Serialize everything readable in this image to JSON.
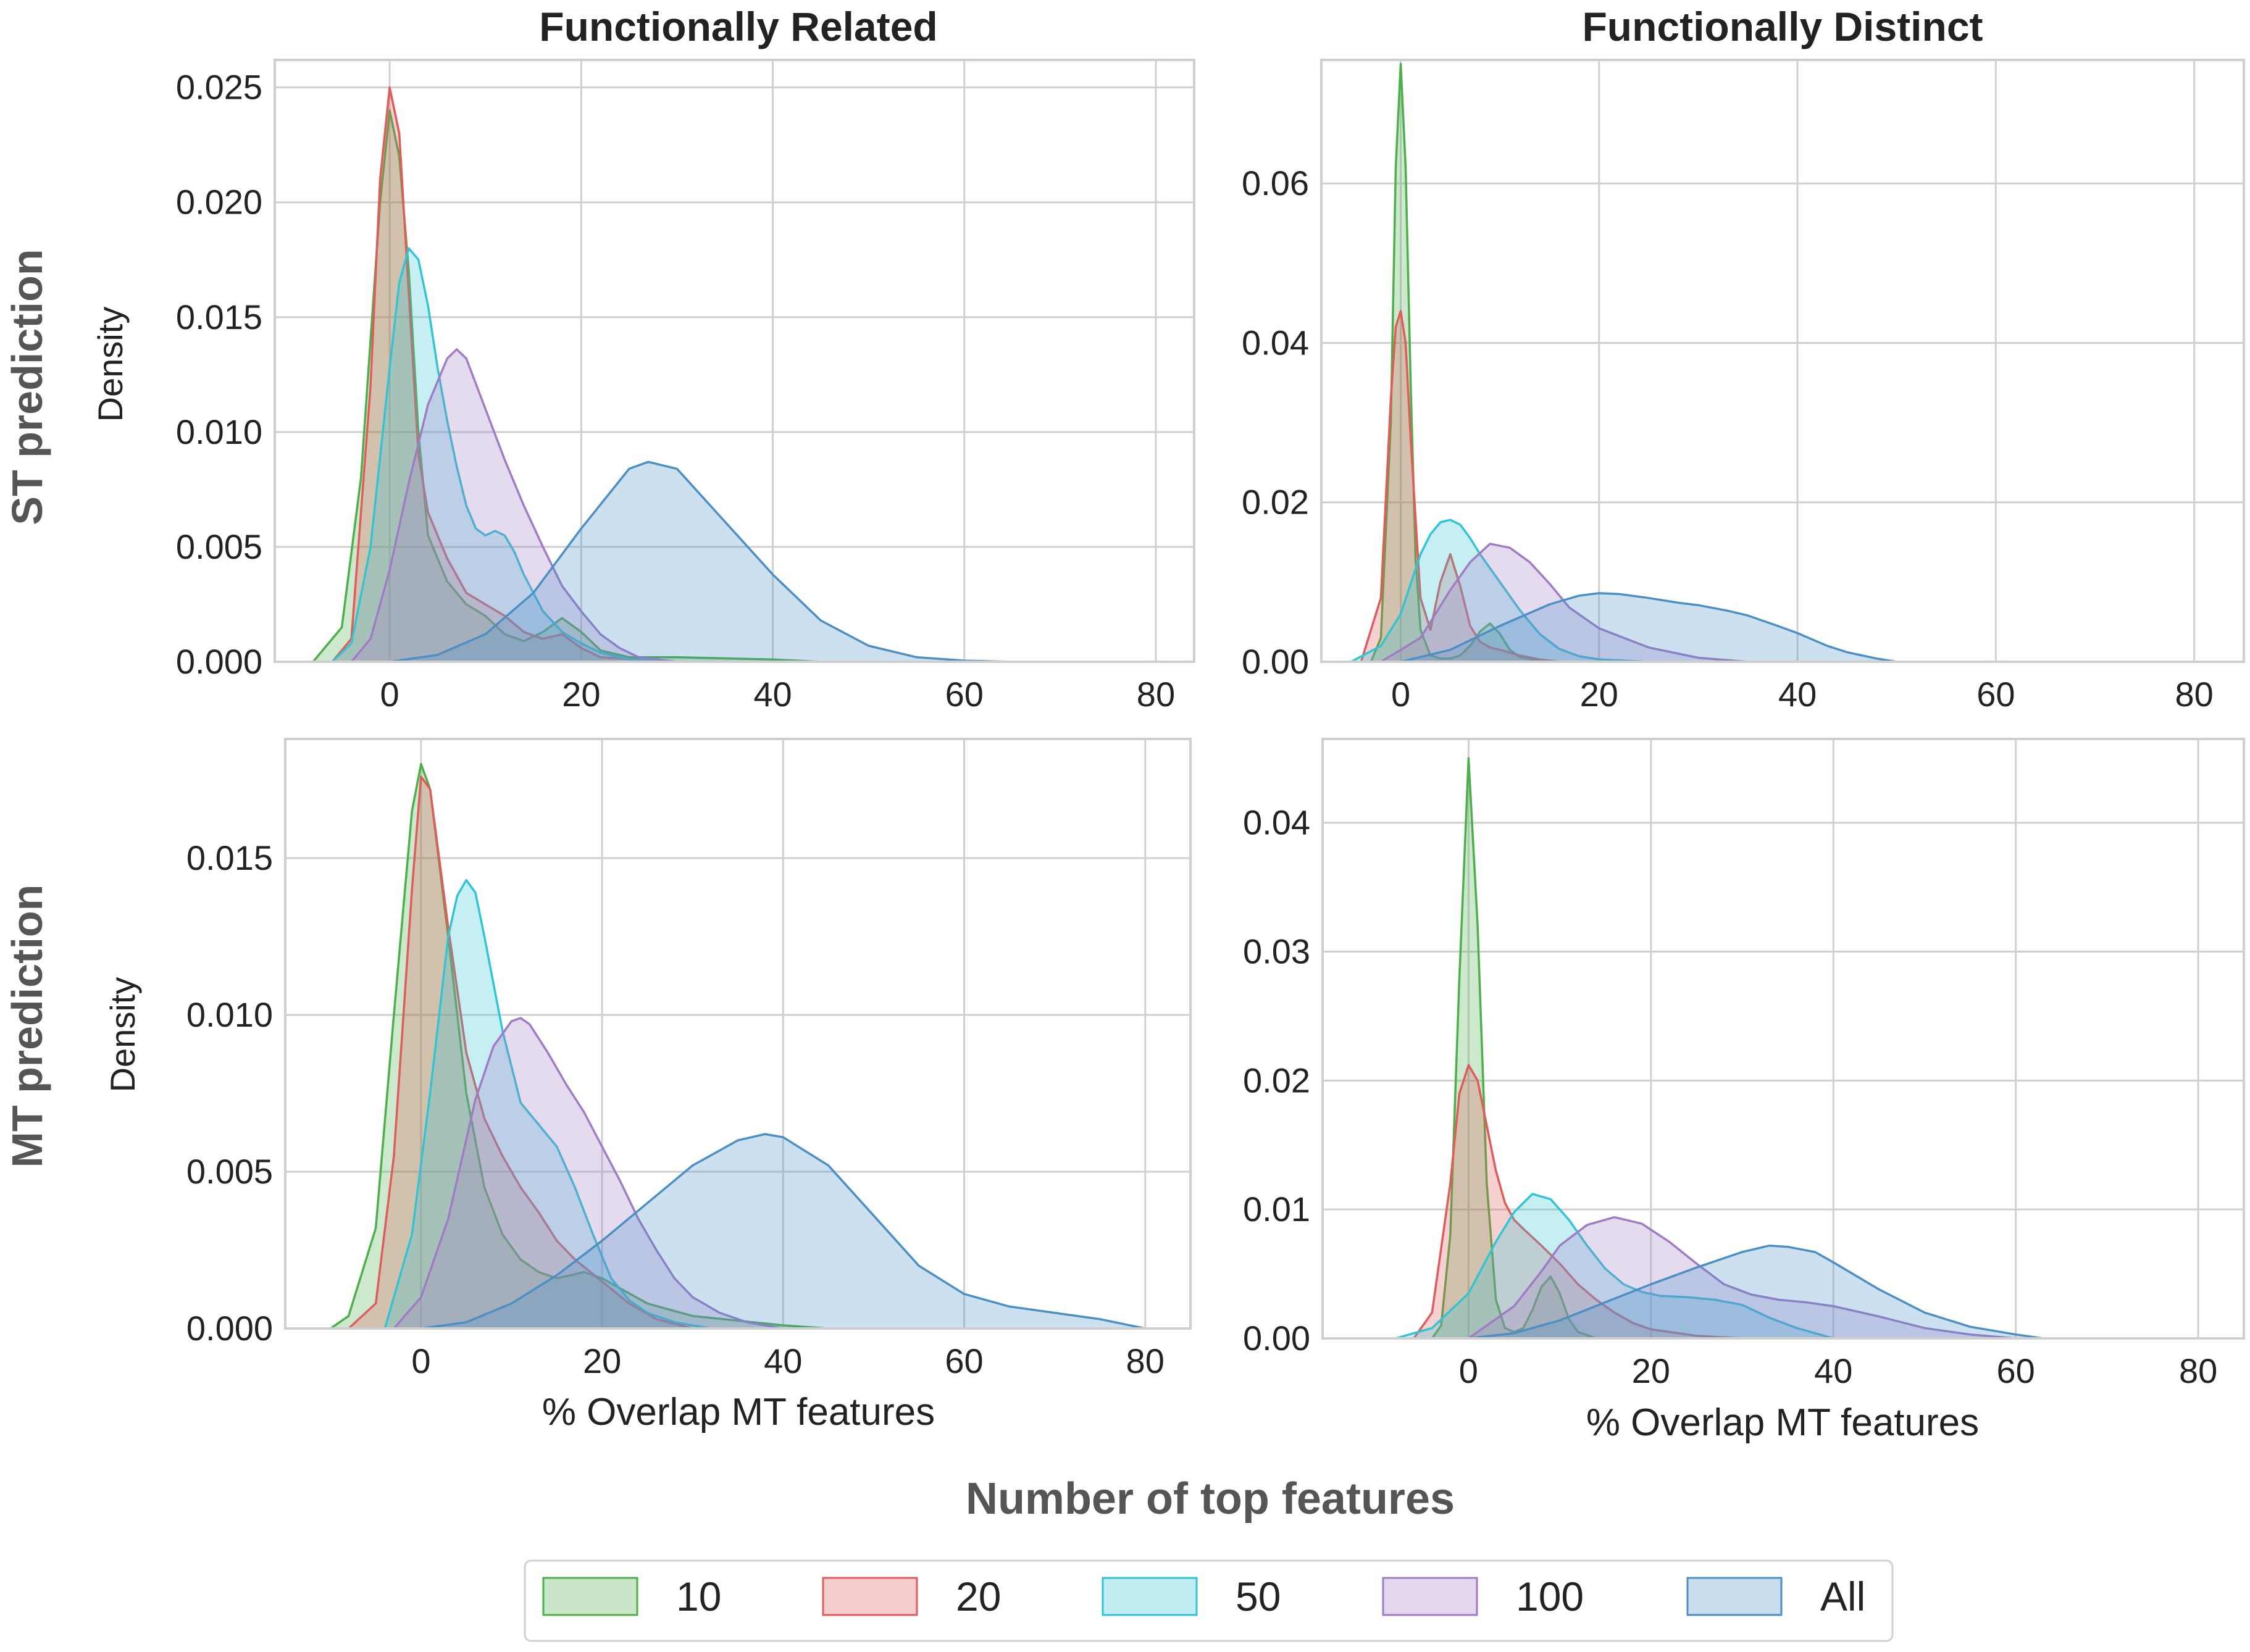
{
  "colors": {
    "10": "#4daf4a",
    "20": "#e05b5b",
    "50": "#33c4d4",
    "100": "#a07cc5",
    "All": "#4b8fc4"
  },
  "column_titles": [
    "Functionally Related",
    "Functionally Distinct"
  ],
  "row_titles": [
    "ST prediction",
    "MT prediction"
  ],
  "legend": {
    "title": "Number of top features",
    "items": [
      {
        "key": "10",
        "label": "10"
      },
      {
        "key": "20",
        "label": "20"
      },
      {
        "key": "50",
        "label": "50"
      },
      {
        "key": "100",
        "label": "100"
      },
      {
        "key": "All",
        "label": "All"
      }
    ]
  },
  "chart_data": [
    {
      "type": "area",
      "panel": "ST prediction / Functionally Related",
      "title": "Functionally Related",
      "xlabel": "",
      "ylabel": "Density",
      "xlim": [
        -12,
        84
      ],
      "ylim": [
        0,
        0.0262
      ],
      "xticks": [
        0,
        20,
        40,
        60,
        80
      ],
      "xtick_labels": [
        "0",
        "20",
        "40",
        "60",
        "80"
      ],
      "yticks": [
        0,
        0.005,
        0.01,
        0.015,
        0.02,
        0.025
      ],
      "ytick_labels": [
        "0.000",
        "0.005",
        "0.010",
        "0.015",
        "0.020",
        "0.025"
      ],
      "series": [
        {
          "name": "10",
          "x": [
            -8,
            -5,
            -3,
            -1,
            0,
            1,
            2,
            3,
            4,
            6,
            8,
            10,
            12,
            14,
            16,
            18,
            20,
            22,
            25,
            30,
            40,
            45
          ],
          "y": [
            0,
            0.0015,
            0.008,
            0.02,
            0.024,
            0.022,
            0.017,
            0.01,
            0.0055,
            0.0035,
            0.0025,
            0.002,
            0.0012,
            0.0009,
            0.0013,
            0.0019,
            0.0013,
            0.0005,
            0.0002,
            0.0002,
            0.0001,
            0
          ]
        },
        {
          "name": "20",
          "x": [
            -6,
            -4,
            -2,
            -1,
            0,
            1,
            2,
            3,
            4,
            5,
            6,
            8,
            10,
            12,
            14,
            16,
            18,
            20,
            22,
            26,
            30
          ],
          "y": [
            0,
            0.001,
            0.012,
            0.021,
            0.025,
            0.023,
            0.016,
            0.009,
            0.0065,
            0.0055,
            0.0045,
            0.003,
            0.0025,
            0.002,
            0.0013,
            0.001,
            0.0012,
            0.0006,
            0.0002,
            0.0001,
            0
          ]
        },
        {
          "name": "50",
          "x": [
            -6,
            -4,
            -2,
            0,
            1,
            2,
            3,
            4,
            5,
            6,
            7,
            8,
            9,
            10,
            11,
            12,
            13,
            14,
            16,
            18,
            20,
            22,
            25,
            30
          ],
          "y": [
            0,
            0.0008,
            0.005,
            0.0128,
            0.0165,
            0.018,
            0.0175,
            0.0155,
            0.0128,
            0.0105,
            0.0085,
            0.0068,
            0.0058,
            0.0055,
            0.0057,
            0.0055,
            0.0048,
            0.0038,
            0.0022,
            0.0013,
            0.0008,
            0.0004,
            0.0001,
            0
          ]
        },
        {
          "name": "100",
          "x": [
            -4,
            -2,
            0,
            2,
            4,
            6,
            7,
            8,
            10,
            12,
            14,
            16,
            18,
            20,
            22,
            24,
            26,
            30
          ],
          "y": [
            0,
            0.001,
            0.004,
            0.0078,
            0.0112,
            0.0132,
            0.0136,
            0.0132,
            0.011,
            0.0088,
            0.0068,
            0.005,
            0.0033,
            0.0022,
            0.0012,
            0.0006,
            0.0002,
            0
          ]
        },
        {
          "name": "All",
          "x": [
            0,
            5,
            10,
            15,
            20,
            25,
            27,
            30,
            35,
            40,
            45,
            50,
            55,
            60,
            65
          ],
          "y": [
            0,
            0.0003,
            0.0012,
            0.003,
            0.0058,
            0.0084,
            0.0087,
            0.0084,
            0.0061,
            0.0038,
            0.0018,
            0.0007,
            0.0002,
            5e-05,
            0
          ]
        }
      ]
    },
    {
      "type": "area",
      "panel": "ST prediction / Functionally Distinct",
      "title": "Functionally Distinct",
      "xlabel": "",
      "ylabel": "",
      "xlim": [
        -8,
        85
      ],
      "ylim": [
        0,
        0.0755
      ],
      "xticks": [
        0,
        20,
        40,
        60,
        80
      ],
      "xtick_labels": [
        "0",
        "20",
        "40",
        "60",
        "80"
      ],
      "yticks": [
        0,
        0.02,
        0.04,
        0.06
      ],
      "ytick_labels": [
        "0.00",
        "0.02",
        "0.04",
        "0.06"
      ],
      "series": [
        {
          "name": "10",
          "x": [
            -3,
            -2,
            -1,
            -0.5,
            0,
            0.5,
            1,
            1.5,
            2,
            3,
            4,
            5,
            6,
            7,
            8,
            9,
            10,
            11,
            12,
            14,
            16
          ],
          "y": [
            0,
            0.003,
            0.03,
            0.062,
            0.075,
            0.062,
            0.035,
            0.013,
            0.004,
            0.0008,
            0.0004,
            0.0004,
            0.0008,
            0.002,
            0.0038,
            0.0048,
            0.0035,
            0.0015,
            0.0006,
            0.0001,
            0
          ]
        },
        {
          "name": "20",
          "x": [
            -4,
            -2,
            -1,
            -0.5,
            0,
            0.5,
            1,
            2,
            3,
            4,
            5,
            6,
            7,
            8,
            9,
            10,
            12,
            14,
            16
          ],
          "y": [
            0,
            0.008,
            0.033,
            0.042,
            0.044,
            0.04,
            0.028,
            0.008,
            0.004,
            0.01,
            0.0135,
            0.0095,
            0.0045,
            0.0025,
            0.0018,
            0.0015,
            0.0008,
            0.0003,
            0
          ]
        },
        {
          "name": "50",
          "x": [
            -5,
            -2,
            0,
            2,
            3,
            4,
            5,
            6,
            7,
            8,
            10,
            12,
            14,
            16,
            18,
            20,
            25
          ],
          "y": [
            0,
            0.002,
            0.006,
            0.0135,
            0.016,
            0.0175,
            0.0178,
            0.0172,
            0.0155,
            0.0135,
            0.01,
            0.0065,
            0.0035,
            0.0016,
            0.0007,
            0.0003,
            0
          ]
        },
        {
          "name": "100",
          "x": [
            -2,
            2,
            5,
            7,
            9,
            11,
            13,
            15,
            17,
            20,
            25,
            30,
            35
          ],
          "y": [
            0,
            0.003,
            0.009,
            0.0125,
            0.0148,
            0.0143,
            0.0125,
            0.0098,
            0.0068,
            0.0042,
            0.0018,
            0.0005,
            0
          ]
        },
        {
          "name": "All",
          "x": [
            0,
            5,
            10,
            15,
            18,
            20,
            22,
            25,
            28,
            30,
            33,
            35,
            38,
            40,
            43,
            45,
            48,
            50
          ],
          "y": [
            0,
            0.0015,
            0.0045,
            0.0072,
            0.0083,
            0.0086,
            0.0085,
            0.008,
            0.0074,
            0.0071,
            0.0064,
            0.0058,
            0.0045,
            0.0036,
            0.002,
            0.0012,
            0.0004,
            0
          ]
        }
      ]
    },
    {
      "type": "area",
      "panel": "MT prediction / Functionally Related",
      "title": "",
      "xlabel": "% Overlap MT features",
      "ylabel": "Density",
      "xlim": [
        -15,
        85
      ],
      "ylim": [
        0,
        0.0188
      ],
      "xticks": [
        0,
        20,
        40,
        60,
        80
      ],
      "xtick_labels": [
        "0",
        "20",
        "40",
        "60",
        "80"
      ],
      "yticks": [
        0,
        0.005,
        0.01,
        0.015
      ],
      "ytick_labels": [
        "0.000",
        "0.005",
        "0.010",
        "0.015"
      ],
      "series": [
        {
          "name": "10",
          "x": [
            -10,
            -8,
            -5,
            -3,
            -1,
            0,
            1,
            3,
            5,
            7,
            9,
            11,
            13,
            15,
            18,
            20,
            25,
            30,
            40,
            45
          ],
          "y": [
            0,
            0.0004,
            0.0032,
            0.01,
            0.0165,
            0.018,
            0.0172,
            0.0125,
            0.0075,
            0.0045,
            0.003,
            0.0022,
            0.0018,
            0.0016,
            0.0018,
            0.0016,
            0.0008,
            0.0004,
            0.0001,
            0
          ]
        },
        {
          "name": "20",
          "x": [
            -8,
            -5,
            -3,
            -1,
            0,
            1,
            3,
            5,
            7,
            9,
            11,
            13,
            15,
            17,
            20,
            23,
            26,
            30
          ],
          "y": [
            0,
            0.0008,
            0.0055,
            0.014,
            0.0176,
            0.0172,
            0.0128,
            0.0088,
            0.0067,
            0.0055,
            0.0045,
            0.0037,
            0.0028,
            0.0022,
            0.0015,
            0.0008,
            0.0003,
            0
          ]
        },
        {
          "name": "50",
          "x": [
            -4,
            -1,
            1,
            3,
            4,
            5,
            6,
            7,
            9,
            11,
            13,
            15,
            17,
            19,
            21,
            23,
            25,
            28,
            32
          ],
          "y": [
            0,
            0.003,
            0.0075,
            0.0125,
            0.0138,
            0.0143,
            0.0139,
            0.0125,
            0.0095,
            0.0072,
            0.0065,
            0.0058,
            0.0045,
            0.003,
            0.0016,
            0.0009,
            0.0005,
            0.0002,
            0
          ]
        },
        {
          "name": "100",
          "x": [
            -3,
            0,
            3,
            6,
            8,
            10,
            11,
            12,
            14,
            16,
            18,
            20,
            22,
            24,
            26,
            28,
            30,
            33,
            36,
            40
          ],
          "y": [
            0,
            0.001,
            0.0035,
            0.0073,
            0.009,
            0.0098,
            0.0099,
            0.0097,
            0.0088,
            0.0078,
            0.0069,
            0.0058,
            0.0047,
            0.0035,
            0.0025,
            0.0016,
            0.001,
            0.0005,
            0.0002,
            0
          ]
        },
        {
          "name": "All",
          "x": [
            0,
            5,
            10,
            15,
            20,
            25,
            30,
            35,
            38,
            40,
            45,
            50,
            55,
            60,
            65,
            70,
            75,
            80
          ],
          "y": [
            0,
            0.0002,
            0.0008,
            0.0017,
            0.0028,
            0.004,
            0.0052,
            0.006,
            0.0062,
            0.0061,
            0.0052,
            0.0036,
            0.002,
            0.0011,
            0.0007,
            0.0005,
            0.0003,
            0
          ]
        }
      ]
    },
    {
      "type": "area",
      "panel": "MT prediction / Functionally Distinct",
      "title": "",
      "xlabel": "% Overlap MT features",
      "ylabel": "",
      "xlim": [
        -16,
        85
      ],
      "ylim": [
        0,
        0.0465
      ],
      "xticks": [
        0,
        20,
        40,
        60,
        80
      ],
      "xtick_labels": [
        "0",
        "20",
        "40",
        "60",
        "80"
      ],
      "yticks": [
        0,
        0.01,
        0.02,
        0.03,
        0.04
      ],
      "ytick_labels": [
        "0.00",
        "0.01",
        "0.02",
        "0.03",
        "0.04"
      ],
      "series": [
        {
          "name": "10",
          "x": [
            -4,
            -3,
            -2,
            -1,
            0,
            1,
            2,
            3,
            4,
            5,
            6,
            7,
            8,
            9,
            10,
            11,
            12,
            14
          ],
          "y": [
            0,
            0.001,
            0.008,
            0.028,
            0.045,
            0.032,
            0.012,
            0.003,
            0.0008,
            0.0005,
            0.0008,
            0.0022,
            0.004,
            0.0048,
            0.0035,
            0.0015,
            0.0005,
            0
          ]
        },
        {
          "name": "20",
          "x": [
            -6,
            -4,
            -2,
            -1,
            0,
            1,
            2,
            3,
            4,
            5,
            6,
            8,
            10,
            12,
            14,
            16,
            18,
            20,
            25,
            30
          ],
          "y": [
            0,
            0.002,
            0.012,
            0.019,
            0.0212,
            0.02,
            0.0165,
            0.013,
            0.0105,
            0.0092,
            0.0085,
            0.0072,
            0.0058,
            0.0042,
            0.003,
            0.002,
            0.0012,
            0.0007,
            0.0002,
            0
          ]
        },
        {
          "name": "50",
          "x": [
            -8,
            -4,
            0,
            3,
            5,
            7,
            9,
            11,
            13,
            15,
            17,
            19,
            21,
            24,
            27,
            30,
            33,
            36,
            40
          ],
          "y": [
            0,
            0.0008,
            0.0035,
            0.0075,
            0.0098,
            0.0112,
            0.0108,
            0.0092,
            0.0072,
            0.0054,
            0.0042,
            0.0036,
            0.0033,
            0.0032,
            0.003,
            0.0026,
            0.0016,
            0.0008,
            0
          ]
        },
        {
          "name": "100",
          "x": [
            0,
            5,
            8,
            10,
            13,
            16,
            19,
            22,
            25,
            28,
            31,
            34,
            37,
            40,
            45,
            50,
            55,
            60
          ],
          "y": [
            0,
            0.0025,
            0.0052,
            0.0072,
            0.0088,
            0.0094,
            0.0089,
            0.0075,
            0.0058,
            0.0042,
            0.0034,
            0.003,
            0.0028,
            0.0025,
            0.0017,
            0.0008,
            0.0003,
            0
          ]
        },
        {
          "name": "All",
          "x": [
            0,
            5,
            10,
            15,
            20,
            25,
            30,
            33,
            35,
            38,
            40,
            45,
            50,
            55,
            60,
            63
          ],
          "y": [
            0,
            0.0004,
            0.0014,
            0.0028,
            0.0042,
            0.0055,
            0.0067,
            0.0072,
            0.0071,
            0.0067,
            0.0059,
            0.0038,
            0.002,
            0.0009,
            0.0003,
            0
          ]
        }
      ]
    }
  ]
}
